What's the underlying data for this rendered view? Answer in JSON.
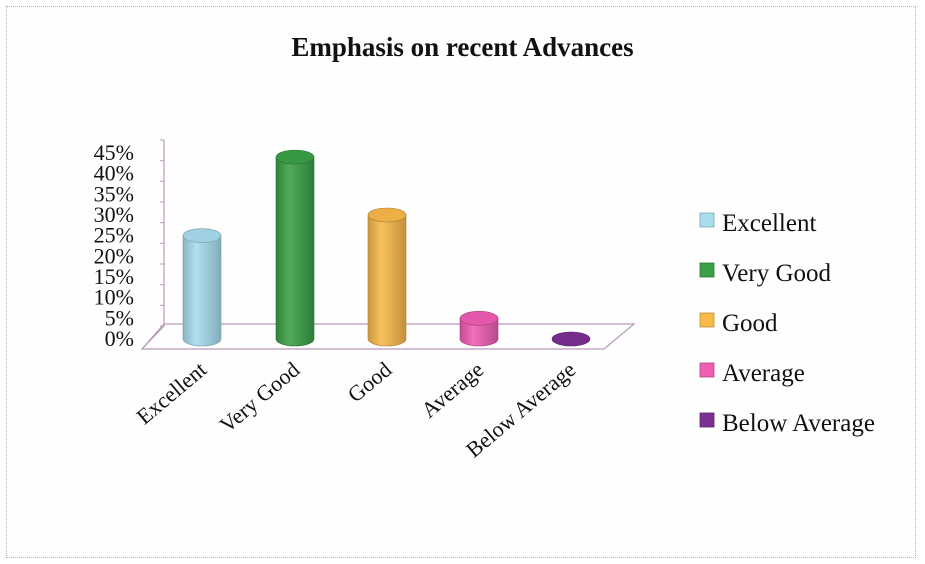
{
  "chart_data": {
    "type": "bar",
    "title": "Emphasis on recent  Advances",
    "categories": [
      "Excellent",
      "Very Good",
      "Good",
      "Average",
      "Below Average"
    ],
    "values": [
      25,
      44,
      30,
      5,
      0
    ],
    "unit": "%",
    "ylim": [
      0,
      45
    ],
    "yticks": [
      "0%",
      "5%",
      "10%",
      "15%",
      "20%",
      "25%",
      "30%",
      "35%",
      "40%",
      "45%"
    ],
    "colors": [
      "#a8dcef",
      "#3aa046",
      "#f8b84a",
      "#f05cb4",
      "#7a2f92"
    ],
    "legend": [
      "Excellent",
      "Very Good",
      "Good",
      "Average",
      "Below Average"
    ],
    "legend_position": "right",
    "style": "3d cylinder",
    "grid": false
  }
}
